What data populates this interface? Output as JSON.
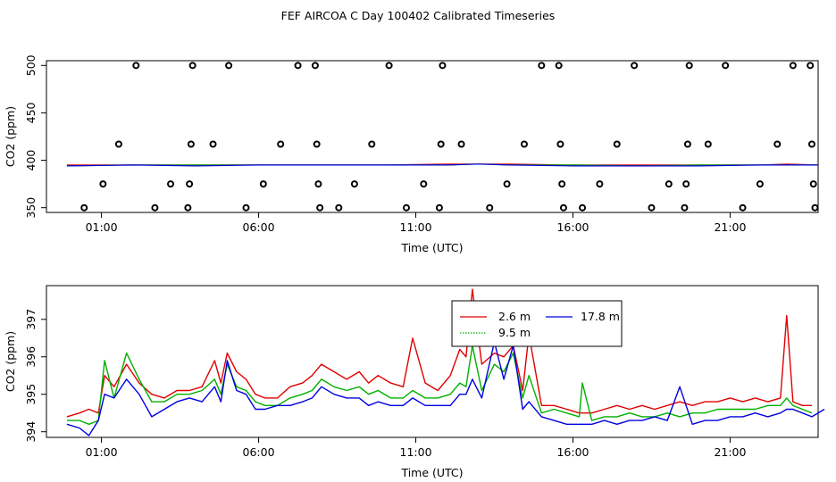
{
  "title": "FEF AIRCOA C  Day 100402  Calibrated Timeseries",
  "colors": {
    "red": "#e00000",
    "green": "#00b000",
    "blue": "#0000e0",
    "axis": "#000000"
  },
  "chart_data": [
    {
      "type": "scatter",
      "title": "FEF AIRCOA C  Day 100402  Calibrated Timeseries",
      "xlabel": "Time (UTC)",
      "ylabel": "CO2 (ppm)",
      "xlim": [
        -0.75,
        23.8
      ],
      "ylim": [
        345,
        505
      ],
      "x_ticks": [
        1,
        6,
        11,
        16,
        21
      ],
      "x_tick_labels": [
        "01:00",
        "06:00",
        "11:00",
        "16:00",
        "21:00"
      ],
      "y_ticks": [
        350,
        400,
        450,
        500
      ],
      "y_tick_labels": [
        "350",
        "400",
        "450",
        "500"
      ],
      "calibration_points": [
        {
          "x": 0.45,
          "y": 350
        },
        {
          "x": 1.05,
          "y": 375
        },
        {
          "x": 1.55,
          "y": 417
        },
        {
          "x": 2.1,
          "y": 500
        },
        {
          "x": 2.7,
          "y": 350
        },
        {
          "x": 3.2,
          "y": 375
        },
        {
          "x": 3.75,
          "y": 350
        },
        {
          "x": 3.8,
          "y": 375
        },
        {
          "x": 3.85,
          "y": 417
        },
        {
          "x": 3.9,
          "y": 500
        },
        {
          "x": 4.55,
          "y": 417
        },
        {
          "x": 5.05,
          "y": 500
        },
        {
          "x": 5.6,
          "y": 350
        },
        {
          "x": 6.15,
          "y": 375
        },
        {
          "x": 6.7,
          "y": 417
        },
        {
          "x": 7.25,
          "y": 500
        },
        {
          "x": 7.8,
          "y": 500
        },
        {
          "x": 7.85,
          "y": 417
        },
        {
          "x": 7.9,
          "y": 375
        },
        {
          "x": 7.95,
          "y": 350
        },
        {
          "x": 8.55,
          "y": 350
        },
        {
          "x": 9.05,
          "y": 375
        },
        {
          "x": 9.6,
          "y": 417
        },
        {
          "x": 10.15,
          "y": 500
        },
        {
          "x": 10.7,
          "y": 350
        },
        {
          "x": 11.25,
          "y": 375
        },
        {
          "x": 11.75,
          "y": 350
        },
        {
          "x": 11.8,
          "y": 417
        },
        {
          "x": 11.85,
          "y": 500
        },
        {
          "x": 12.45,
          "y": 417
        },
        {
          "x": 13.35,
          "y": 350
        },
        {
          "x": 13.9,
          "y": 375
        },
        {
          "x": 14.45,
          "y": 417
        },
        {
          "x": 15.0,
          "y": 500
        },
        {
          "x": 15.55,
          "y": 500
        },
        {
          "x": 15.6,
          "y": 417
        },
        {
          "x": 15.65,
          "y": 375
        },
        {
          "x": 15.7,
          "y": 350
        },
        {
          "x": 16.3,
          "y": 350
        },
        {
          "x": 16.85,
          "y": 375
        },
        {
          "x": 17.4,
          "y": 417
        },
        {
          "x": 17.95,
          "y": 500
        },
        {
          "x": 18.5,
          "y": 350
        },
        {
          "x": 19.05,
          "y": 375
        },
        {
          "x": 19.55,
          "y": 350
        },
        {
          "x": 19.6,
          "y": 375
        },
        {
          "x": 19.65,
          "y": 417
        },
        {
          "x": 19.7,
          "y": 500
        },
        {
          "x": 20.3,
          "y": 417
        },
        {
          "x": 20.85,
          "y": 500
        },
        {
          "x": 21.4,
          "y": 350
        },
        {
          "x": 21.95,
          "y": 375
        },
        {
          "x": 22.5,
          "y": 417
        },
        {
          "x": 23.0,
          "y": 500
        },
        {
          "x": 23.55,
          "y": 500
        },
        {
          "x": 23.6,
          "y": 417
        },
        {
          "x": 23.65,
          "y": 375
        },
        {
          "x": 23.7,
          "y": 350
        }
      ],
      "series": [
        {
          "name": "",
          "color": "#e00000",
          "x": [
            -0.1,
            2,
            4,
            6,
            8,
            10,
            12,
            13,
            14,
            16,
            18,
            20,
            22,
            22.8,
            23.8
          ],
          "values": [
            395,
            395,
            395,
            395,
            395,
            395,
            396,
            396,
            396,
            395,
            395,
            395,
            395,
            396,
            395
          ]
        },
        {
          "name": "",
          "color": "#00b000",
          "x": [
            -0.1,
            2,
            4,
            6,
            8,
            10,
            12,
            13,
            14,
            16,
            18,
            20,
            22,
            22.8,
            23.8
          ],
          "values": [
            394,
            395,
            395,
            395,
            395,
            395,
            395,
            396,
            395,
            395,
            394,
            395,
            395,
            395,
            395
          ]
        },
        {
          "name": "",
          "color": "#0000e0",
          "x": [
            -0.1,
            2,
            4,
            6,
            8,
            10,
            12,
            13,
            14,
            16,
            18,
            20,
            22,
            22.8,
            23.8
          ],
          "values": [
            394,
            395,
            394,
            395,
            395,
            395,
            395,
            396,
            395,
            394,
            394,
            394,
            395,
            395,
            395
          ]
        }
      ]
    },
    {
      "type": "line",
      "xlabel": "Time (UTC)",
      "ylabel": "CO2 (ppm)",
      "xlim": [
        -0.75,
        23.8
      ],
      "ylim": [
        393.85,
        397.9
      ],
      "x_ticks": [
        1,
        6,
        11,
        16,
        21
      ],
      "x_tick_labels": [
        "01:00",
        "06:00",
        "11:00",
        "16:00",
        "21:00"
      ],
      "y_ticks": [
        394,
        395,
        396,
        397
      ],
      "y_tick_labels": [
        "394",
        "395",
        "396",
        "397"
      ],
      "legend_position": "top-center",
      "series": [
        {
          "name": "2.6 m",
          "color": "#e00000",
          "x": [
            -0.1,
            0.3,
            0.6,
            0.9,
            1.1,
            1.4,
            1.8,
            2.2,
            2.6,
            3.0,
            3.4,
            3.8,
            4.2,
            4.6,
            4.8,
            5.0,
            5.3,
            5.6,
            5.9,
            6.2,
            6.6,
            7.0,
            7.4,
            7.7,
            8.0,
            8.4,
            8.8,
            9.2,
            9.5,
            9.8,
            10.2,
            10.6,
            10.9,
            11.3,
            11.7,
            12.1,
            12.4,
            12.6,
            12.8,
            13.1,
            13.5,
            13.8,
            14.1,
            14.4,
            14.6,
            15.0,
            15.4,
            15.8,
            16.2,
            16.6,
            17.0,
            17.4,
            17.8,
            18.2,
            18.6,
            19.0,
            19.4,
            19.8,
            20.2,
            20.6,
            21.0,
            21.4,
            21.8,
            22.2,
            22.6,
            22.8,
            23.0,
            23.3,
            23.6
          ],
          "values": [
            394.4,
            394.5,
            394.6,
            394.5,
            395.5,
            395.2,
            395.8,
            395.3,
            395.0,
            394.9,
            395.1,
            395.1,
            395.2,
            395.9,
            395.3,
            396.1,
            395.6,
            395.4,
            395.0,
            394.9,
            394.9,
            395.2,
            395.3,
            395.5,
            395.8,
            395.6,
            395.4,
            395.6,
            395.3,
            395.5,
            395.3,
            395.2,
            396.5,
            395.3,
            395.1,
            395.5,
            396.2,
            396.0,
            397.8,
            395.8,
            396.1,
            396.0,
            396.3,
            395.1,
            396.6,
            394.7,
            394.7,
            394.6,
            394.5,
            394.5,
            394.6,
            394.7,
            394.6,
            394.7,
            394.6,
            394.7,
            394.8,
            394.7,
            394.8,
            394.8,
            394.9,
            394.8,
            394.9,
            394.8,
            394.9,
            397.1,
            394.8,
            394.7,
            394.7
          ]
        },
        {
          "name": "9.5 m",
          "color": "#00b000",
          "x": [
            -0.1,
            0.3,
            0.6,
            0.9,
            1.1,
            1.4,
            1.8,
            2.2,
            2.6,
            3.0,
            3.4,
            3.8,
            4.2,
            4.6,
            4.8,
            5.0,
            5.3,
            5.6,
            5.9,
            6.2,
            6.6,
            7.0,
            7.4,
            7.7,
            8.0,
            8.4,
            8.8,
            9.2,
            9.5,
            9.8,
            10.2,
            10.6,
            10.9,
            11.3,
            11.7,
            12.1,
            12.4,
            12.6,
            12.8,
            13.1,
            13.5,
            13.8,
            14.1,
            14.4,
            14.6,
            15.0,
            15.4,
            15.8,
            16.2,
            16.3,
            16.6,
            17.0,
            17.4,
            17.8,
            18.2,
            18.6,
            19.0,
            19.4,
            19.8,
            20.2,
            20.6,
            21.0,
            21.4,
            21.8,
            22.2,
            22.6,
            22.8,
            23.0,
            23.3,
            23.6
          ],
          "values": [
            394.3,
            394.3,
            394.2,
            394.3,
            395.9,
            394.9,
            396.1,
            395.4,
            394.8,
            394.8,
            395.0,
            395.0,
            395.1,
            395.4,
            395.0,
            395.8,
            395.2,
            395.1,
            394.8,
            394.7,
            394.7,
            394.9,
            395.0,
            395.1,
            395.4,
            395.2,
            395.1,
            395.2,
            395.0,
            395.1,
            394.9,
            394.9,
            395.1,
            394.9,
            394.9,
            395.0,
            395.3,
            395.2,
            396.3,
            395.1,
            395.8,
            395.6,
            396.1,
            394.9,
            395.5,
            394.5,
            394.6,
            394.5,
            394.4,
            395.3,
            394.3,
            394.4,
            394.4,
            394.5,
            394.4,
            394.4,
            394.5,
            394.4,
            394.5,
            394.5,
            394.6,
            394.6,
            394.6,
            394.6,
            394.7,
            394.7,
            394.9,
            394.7,
            394.6,
            394.5
          ]
        },
        {
          "name": "17.8 m",
          "color": "#0000e0",
          "x": [
            -0.1,
            0.3,
            0.6,
            0.9,
            1.1,
            1.4,
            1.8,
            2.2,
            2.6,
            3.0,
            3.4,
            3.8,
            4.2,
            4.6,
            4.8,
            5.0,
            5.3,
            5.6,
            5.9,
            6.2,
            6.6,
            7.0,
            7.4,
            7.7,
            8.0,
            8.4,
            8.8,
            9.2,
            9.5,
            9.8,
            10.2,
            10.6,
            10.9,
            11.3,
            11.7,
            12.1,
            12.4,
            12.6,
            12.8,
            13.1,
            13.5,
            13.8,
            14.1,
            14.4,
            14.6,
            15.0,
            15.4,
            15.8,
            16.2,
            16.6,
            17.0,
            17.4,
            17.8,
            18.2,
            18.6,
            19.0,
            19.4,
            19.8,
            20.2,
            20.6,
            21.0,
            21.4,
            21.8,
            22.2,
            22.6,
            22.8,
            23.0,
            23.3,
            23.6,
            24.0
          ],
          "values": [
            394.2,
            394.1,
            393.9,
            394.3,
            395.0,
            394.9,
            395.4,
            395.0,
            394.4,
            394.6,
            394.8,
            394.9,
            394.8,
            395.2,
            394.8,
            395.9,
            395.1,
            395.0,
            394.6,
            394.6,
            394.7,
            394.7,
            394.8,
            394.9,
            395.2,
            395.0,
            394.9,
            394.9,
            394.7,
            394.8,
            394.7,
            394.7,
            394.9,
            394.7,
            394.7,
            394.7,
            395.0,
            395.0,
            395.4,
            394.9,
            396.4,
            395.4,
            396.3,
            394.6,
            394.8,
            394.4,
            394.3,
            394.2,
            394.2,
            394.2,
            394.3,
            394.2,
            394.3,
            394.3,
            394.4,
            394.3,
            395.2,
            394.2,
            394.3,
            394.3,
            394.4,
            394.4,
            394.5,
            394.4,
            394.5,
            394.6,
            394.6,
            394.5,
            394.4,
            394.6
          ]
        }
      ]
    }
  ]
}
